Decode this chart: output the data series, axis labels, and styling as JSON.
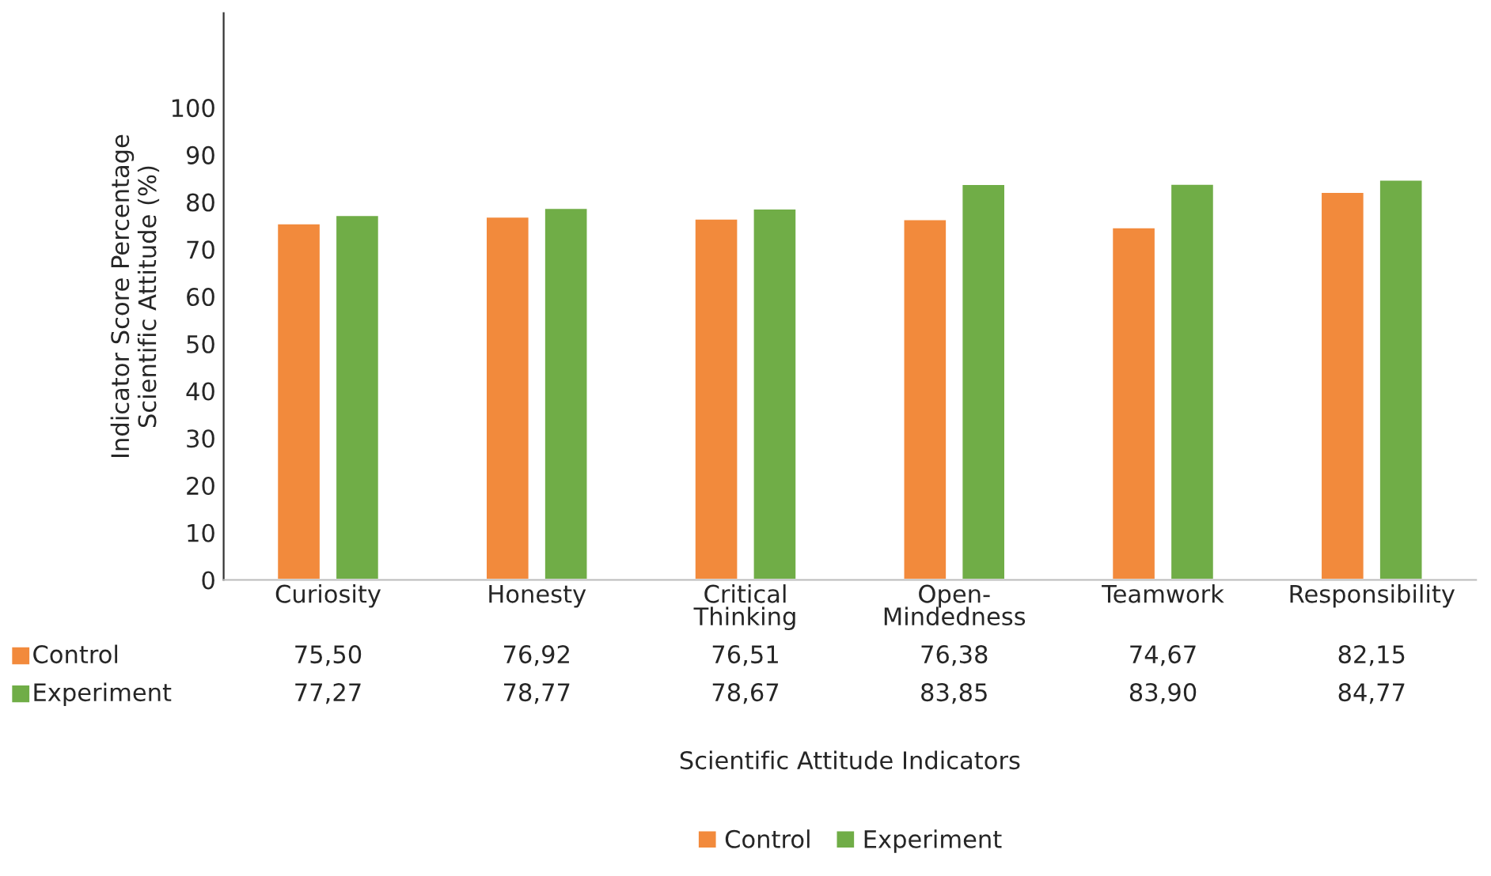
{
  "chart_data": {
    "type": "bar",
    "ylabel": "Indicator Score Percentage\nScientific Attitude (%)",
    "xlabel": "Scientific Attitude Indicators",
    "categories": [
      "Curiosity",
      "Honesty",
      "Critical\nThinking",
      "Open-\nMindedness",
      "Teamwork",
      "Responsibility"
    ],
    "series": [
      {
        "name": "Control",
        "color": "#f28a3c",
        "values": [
          75.5,
          76.92,
          76.51,
          76.38,
          74.67,
          82.15
        ],
        "value_labels": [
          "75,50",
          "76,92",
          "76,51",
          "76,38",
          "74,67",
          "82,15"
        ]
      },
      {
        "name": "Experiment",
        "color": "#70ad47",
        "values": [
          77.27,
          78.77,
          78.67,
          83.85,
          83.9,
          84.77
        ],
        "value_labels": [
          "77,27",
          "78,77",
          "78,67",
          "83,85",
          "83,90",
          "84,77"
        ]
      }
    ],
    "ylim": [
      0,
      120
    ],
    "yticks": [
      0,
      10,
      20,
      30,
      40,
      50,
      60,
      70,
      80,
      90,
      100
    ],
    "grid": false,
    "legend": "bottom"
  }
}
